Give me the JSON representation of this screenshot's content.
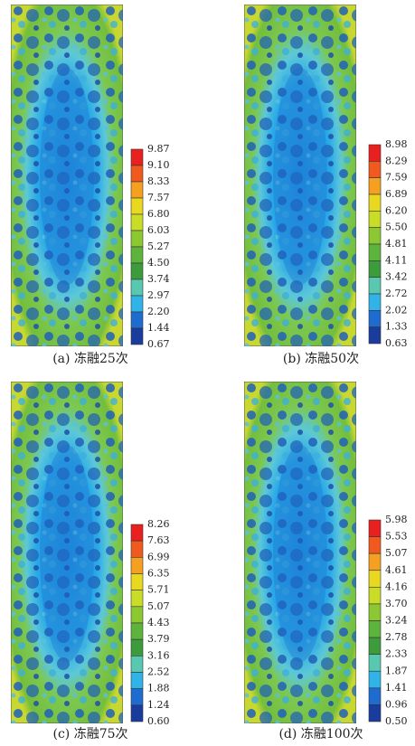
{
  "panels": [
    {
      "caption": "(a) 冻融25次",
      "colorbar": [
        "9.87",
        "9.10",
        "8.33",
        "7.57",
        "6.80",
        "6.03",
        "5.27",
        "4.50",
        "3.74",
        "2.97",
        "2.20",
        "1.44",
        "0.67"
      ]
    },
    {
      "caption": "(b) 冻融50次",
      "colorbar": [
        "8.98",
        "8.29",
        "7.59",
        "6.89",
        "6.20",
        "5.50",
        "4.81",
        "4.11",
        "3.42",
        "2.72",
        "2.02",
        "1.33",
        "0.63"
      ]
    },
    {
      "caption": "(c) 冻融75次",
      "colorbar": [
        "8.26",
        "7.63",
        "6.99",
        "6.35",
        "5.71",
        "5.07",
        "4.43",
        "3.79",
        "3.16",
        "2.52",
        "1.88",
        "1.24",
        "0.60"
      ]
    },
    {
      "caption": "(d) 冻融100次",
      "colorbar": [
        "5.98",
        "5.53",
        "5.07",
        "4.61",
        "4.16",
        "3.70",
        "3.24",
        "2.78",
        "2.33",
        "1.87",
        "1.41",
        "0.96",
        "0.50"
      ]
    }
  ]
}
